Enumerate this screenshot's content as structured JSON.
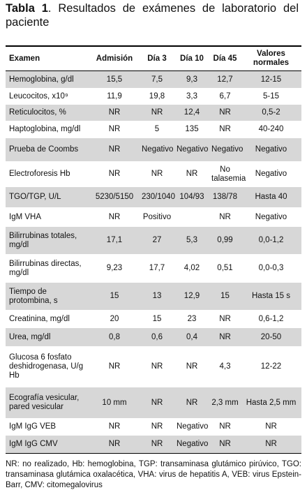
{
  "title": {
    "label": "Tabla 1",
    "text": ". Resultados de exámenes de laboratorio del paciente"
  },
  "table": {
    "header": [
      "Examen",
      "Admisión",
      "Día 3",
      "Día 10",
      "Día 45",
      "Valores normales"
    ],
    "rows": [
      [
        "Hemoglobina, g/dl",
        "15,5",
        "7,5",
        "9,3",
        "12,7",
        "12-15"
      ],
      [
        "Leucocitos, x10⁹",
        "11,9",
        "19,8",
        "3,3",
        "6,7",
        "5-15"
      ],
      [
        "Reticulocitos, %",
        "NR",
        "NR",
        "12,4",
        "NR",
        "0,5-2"
      ],
      [
        "Haptoglobina, mg/dl",
        "NR",
        "5",
        "135",
        "NR",
        "40-240"
      ],
      [
        "Prueba de Coombs",
        "NR",
        "Negativo",
        "Negativo",
        "Negativo",
        "Negativo"
      ],
      [
        "Electroforesis Hb",
        "NR",
        "NR",
        "NR",
        "No talasemia",
        "Negativo"
      ],
      [
        "TGO/TGP, U/L",
        "5230/5150",
        "230/1040",
        "104/93",
        "138/78",
        "Hasta 40"
      ],
      [
        "IgM VHA",
        "NR",
        "Positivo",
        "",
        "NR",
        "Negativo"
      ],
      [
        "Bilirrubinas totales, mg/dl",
        "17,1",
        "27",
        "5,3",
        "0,99",
        "0,0-1,2"
      ],
      [
        "Bilirrubinas directas, mg/dl",
        "9,23",
        "17,7",
        "4,02",
        "0,51",
        "0,0-0,3"
      ],
      [
        "Tiempo de protombina, s",
        "15",
        "13",
        "12,9",
        "15",
        "Hasta 15 s"
      ],
      [
        "Creatinina, mg/dl",
        "20",
        "15",
        "23",
        "NR",
        "0,6-1,2"
      ],
      [
        "Urea, mg/dl",
        "0,8",
        "0,6",
        "0,4",
        "NR",
        "20-50"
      ],
      [
        "Glucosa 6 fosfato deshidrogenasa, U/g Hb",
        "NR",
        "NR",
        "NR",
        "4,3",
        "12-22"
      ],
      [
        "Ecografía vesicular, pared vesicular",
        "10 mm",
        "NR",
        "NR",
        "2,3 mm",
        "Hasta 2,5 mm"
      ],
      [
        "IgM IgG VEB",
        "NR",
        "NR",
        "Negativo",
        "NR",
        "NR"
      ],
      [
        "IgM IgG CMV",
        "NR",
        "NR",
        "Negativo",
        "NR",
        "NR"
      ]
    ]
  },
  "footnote": "NR: no realizado, Hb: hemoglobina, TGP: transaminasa glutámico pirúvico, TGO: transaminasa glutámica oxalacética, VHA: virus de hepatitis A, VEB: virus Epstein-Barr, CMV: citomegalovirus"
}
